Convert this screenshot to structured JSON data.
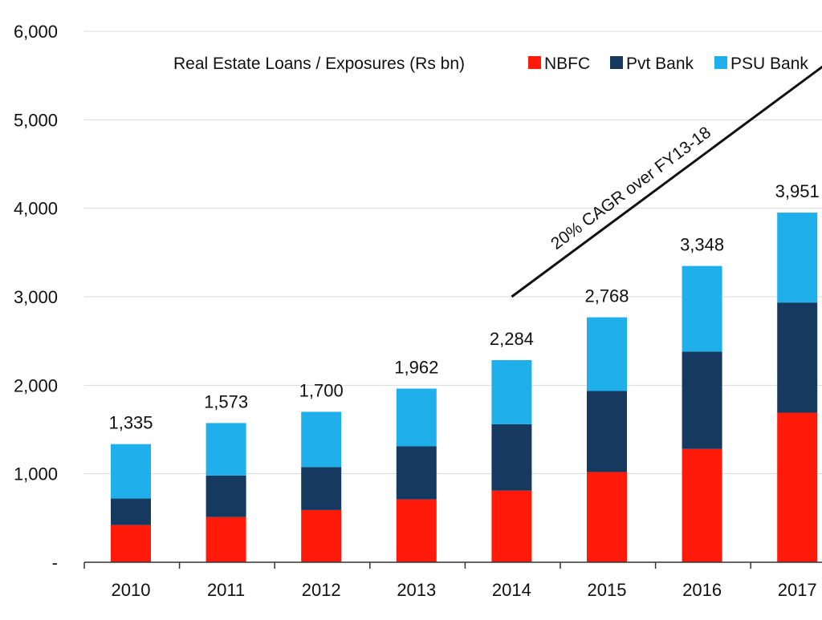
{
  "chart_data": {
    "type": "bar",
    "stacked": true,
    "title": "Real Estate Loans / Exposures (Rs bn)",
    "xlabel": "",
    "ylabel": "",
    "categories": [
      "2010",
      "2011",
      "2012",
      "2013",
      "2014",
      "2015",
      "2016",
      "2017"
    ],
    "series": [
      {
        "name": "NBFC",
        "color": "#ff1a0a",
        "values": [
          420,
          510,
          590,
          710,
          810,
          1020,
          1280,
          1690
        ]
      },
      {
        "name": "Pvt Bank",
        "color": "#163a5f",
        "values": [
          300,
          470,
          485,
          600,
          750,
          915,
          1100,
          1245
        ]
      },
      {
        "name": "PSU Bank",
        "color": "#1fb0ec",
        "values": [
          615,
          593,
          625,
          652,
          724,
          833,
          968,
          1016
        ]
      }
    ],
    "totals": [
      1335,
      1573,
      1700,
      1962,
      2284,
      2768,
      3348,
      3951
    ],
    "total_labels": [
      "1,335",
      "1,573",
      "1,700",
      "1,962",
      "2,284",
      "2,768",
      "3,348",
      "3,951"
    ],
    "ylim": [
      0,
      6000
    ],
    "y_ticks": [
      0,
      1000,
      2000,
      3000,
      4000,
      5000,
      6000
    ],
    "y_tick_labels": [
      "-",
      "1,000",
      "2,000",
      "3,000",
      "4,000",
      "5,000",
      "6,000"
    ],
    "grid": true,
    "legend_position": "top-right",
    "annotation": {
      "text": "20% CAGR over FY13-18",
      "from": {
        "x_index": 4,
        "y": 3000
      },
      "to": {
        "x_index": 7.5,
        "y": 5600
      }
    }
  }
}
